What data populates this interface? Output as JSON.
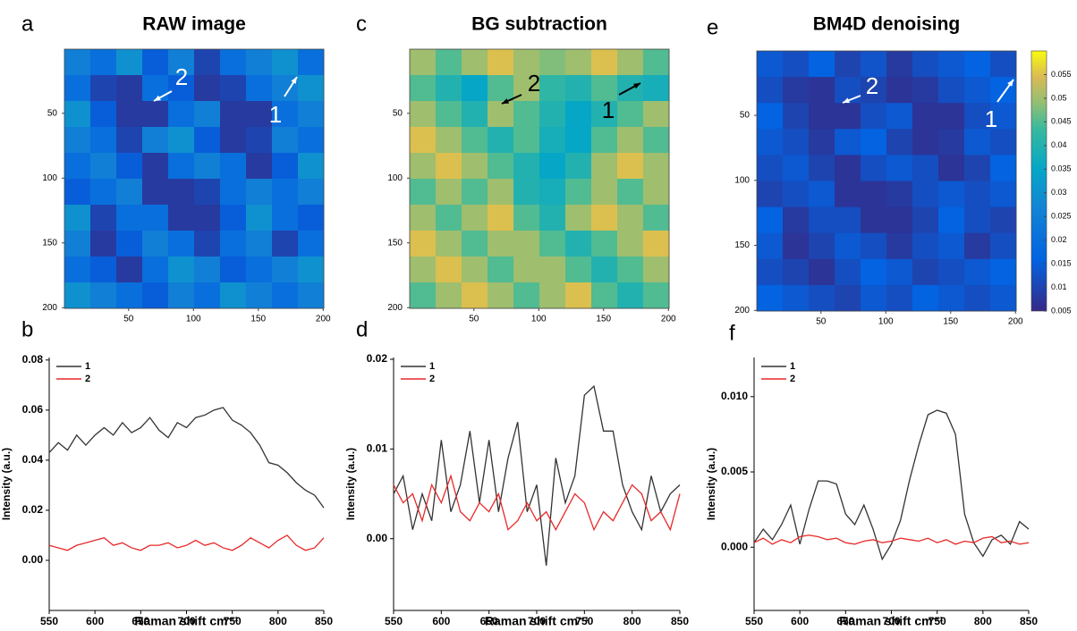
{
  "chart_data": [
    {
      "type": "heatmap",
      "panel": "a",
      "title": "RAW image",
      "annotations": [
        "2",
        "1"
      ],
      "annotation_color": "#ffffff",
      "xlim": [
        0.5,
        200.5
      ],
      "ylim": [
        0.5,
        200.5
      ],
      "xticks": [
        50,
        100,
        150,
        200
      ],
      "yticks": [
        50,
        100,
        150,
        200
      ],
      "values": [
        [
          0.025,
          0.02,
          0.03,
          0.015,
          0.025,
          0.01,
          0.02,
          0.025,
          0.03,
          0.02
        ],
        [
          0.02,
          0.01,
          0.008,
          0.02,
          0.015,
          0.008,
          0.01,
          0.02,
          0.025,
          0.03
        ],
        [
          0.03,
          0.015,
          0.008,
          0.008,
          0.02,
          0.025,
          0.008,
          0.008,
          0.02,
          0.025
        ],
        [
          0.025,
          0.02,
          0.01,
          0.025,
          0.03,
          0.015,
          0.008,
          0.01,
          0.025,
          0.02
        ],
        [
          0.02,
          0.025,
          0.015,
          0.008,
          0.02,
          0.025,
          0.02,
          0.008,
          0.015,
          0.03
        ],
        [
          0.015,
          0.02,
          0.025,
          0.008,
          0.008,
          0.01,
          0.02,
          0.025,
          0.02,
          0.025
        ],
        [
          0.03,
          0.01,
          0.02,
          0.02,
          0.008,
          0.008,
          0.015,
          0.03,
          0.02,
          0.015
        ],
        [
          0.025,
          0.008,
          0.015,
          0.025,
          0.02,
          0.01,
          0.02,
          0.025,
          0.01,
          0.02
        ],
        [
          0.02,
          0.015,
          0.008,
          0.02,
          0.03,
          0.025,
          0.015,
          0.02,
          0.025,
          0.03
        ],
        [
          0.03,
          0.025,
          0.02,
          0.015,
          0.025,
          0.02,
          0.03,
          0.025,
          0.02,
          0.025
        ]
      ]
    },
    {
      "type": "heatmap",
      "panel": "c",
      "title": "BG subtraction",
      "annotations": [
        "2",
        "1"
      ],
      "annotation_color": "#000000",
      "xlim": [
        0.5,
        200.5
      ],
      "ylim": [
        0.5,
        200.5
      ],
      "xticks": [
        50,
        100,
        150,
        200
      ],
      "yticks": [
        50,
        100,
        150,
        200
      ],
      "values": [
        [
          0.05,
          0.045,
          0.05,
          0.055,
          0.05,
          0.048,
          0.05,
          0.055,
          0.05,
          0.045
        ],
        [
          0.045,
          0.04,
          0.035,
          0.045,
          0.05,
          0.042,
          0.04,
          0.045,
          0.04,
          0.038
        ],
        [
          0.05,
          0.045,
          0.04,
          0.05,
          0.045,
          0.04,
          0.035,
          0.04,
          0.045,
          0.05
        ],
        [
          0.055,
          0.05,
          0.045,
          0.04,
          0.045,
          0.038,
          0.035,
          0.045,
          0.05,
          0.045
        ],
        [
          0.05,
          0.055,
          0.05,
          0.045,
          0.04,
          0.035,
          0.04,
          0.05,
          0.055,
          0.05
        ],
        [
          0.045,
          0.05,
          0.045,
          0.05,
          0.04,
          0.038,
          0.045,
          0.05,
          0.045,
          0.05
        ],
        [
          0.05,
          0.045,
          0.05,
          0.055,
          0.045,
          0.04,
          0.05,
          0.055,
          0.05,
          0.045
        ],
        [
          0.055,
          0.05,
          0.045,
          0.05,
          0.05,
          0.045,
          0.04,
          0.045,
          0.05,
          0.055
        ],
        [
          0.05,
          0.055,
          0.05,
          0.045,
          0.05,
          0.05,
          0.045,
          0.04,
          0.045,
          0.05
        ],
        [
          0.045,
          0.05,
          0.055,
          0.05,
          0.045,
          0.05,
          0.055,
          0.045,
          0.04,
          0.045
        ]
      ]
    },
    {
      "type": "heatmap",
      "panel": "e",
      "title": "BM4D denoising",
      "annotations": [
        "2",
        "1"
      ],
      "annotation_color": "#ffffff",
      "xlim": [
        0.5,
        200.5
      ],
      "ylim": [
        0.5,
        200.5
      ],
      "xticks": [
        50,
        100,
        150,
        200
      ],
      "yticks": [
        50,
        100,
        150,
        200
      ],
      "clim": [
        0.005,
        0.06
      ],
      "cticks": [
        0.005,
        0.01,
        0.015,
        0.02,
        0.025,
        0.03,
        0.035,
        0.04,
        0.045,
        0.05,
        0.055
      ],
      "values": [
        [
          0.014,
          0.012,
          0.016,
          0.01,
          0.013,
          0.008,
          0.012,
          0.014,
          0.016,
          0.012
        ],
        [
          0.012,
          0.008,
          0.007,
          0.012,
          0.01,
          0.007,
          0.008,
          0.012,
          0.014,
          0.016
        ],
        [
          0.016,
          0.01,
          0.007,
          0.007,
          0.012,
          0.014,
          0.007,
          0.007,
          0.012,
          0.014
        ],
        [
          0.014,
          0.012,
          0.008,
          0.014,
          0.016,
          0.01,
          0.007,
          0.008,
          0.014,
          0.012
        ],
        [
          0.012,
          0.014,
          0.01,
          0.007,
          0.012,
          0.014,
          0.012,
          0.007,
          0.01,
          0.016
        ],
        [
          0.01,
          0.012,
          0.014,
          0.007,
          0.007,
          0.008,
          0.012,
          0.014,
          0.012,
          0.014
        ],
        [
          0.016,
          0.008,
          0.012,
          0.012,
          0.007,
          0.007,
          0.01,
          0.016,
          0.012,
          0.01
        ],
        [
          0.014,
          0.007,
          0.01,
          0.014,
          0.012,
          0.008,
          0.012,
          0.014,
          0.008,
          0.012
        ],
        [
          0.012,
          0.01,
          0.007,
          0.012,
          0.016,
          0.014,
          0.01,
          0.012,
          0.014,
          0.016
        ],
        [
          0.016,
          0.014,
          0.012,
          0.01,
          0.014,
          0.012,
          0.016,
          0.014,
          0.012,
          0.014
        ]
      ]
    },
    {
      "type": "line",
      "panel": "b",
      "xlabel": "Raman shift cm⁻¹",
      "ylabel": "Intensity (a.u.)",
      "xlim": [
        550,
        850
      ],
      "ylim": [
        -0.02,
        0.081
      ],
      "xticks": [
        550,
        600,
        650,
        700,
        750,
        800,
        850
      ],
      "yticks": [
        {
          "value": 0,
          "label": "0.00"
        },
        {
          "value": 0.02,
          "label": "0.02"
        },
        {
          "value": 0.04,
          "label": "0.04"
        },
        {
          "value": 0.06,
          "label": "0.06"
        },
        {
          "value": 0.08,
          "label": "0.08"
        }
      ],
      "x": [
        550,
        560,
        570,
        580,
        590,
        600,
        610,
        620,
        630,
        640,
        650,
        660,
        670,
        680,
        690,
        700,
        710,
        720,
        730,
        740,
        750,
        760,
        770,
        780,
        790,
        800,
        810,
        820,
        830,
        840,
        850
      ],
      "series": [
        {
          "name": "1",
          "color": "#333333",
          "values": [
            0.043,
            0.047,
            0.044,
            0.05,
            0.046,
            0.05,
            0.053,
            0.05,
            0.055,
            0.051,
            0.053,
            0.057,
            0.052,
            0.049,
            0.055,
            0.053,
            0.057,
            0.058,
            0.06,
            0.061,
            0.056,
            0.054,
            0.051,
            0.046,
            0.039,
            0.038,
            0.035,
            0.031,
            0.028,
            0.026,
            0.021
          ]
        },
        {
          "name": "2",
          "color": "#e8292a",
          "values": [
            0.006,
            0.005,
            0.004,
            0.006,
            0.007,
            0.008,
            0.009,
            0.006,
            0.007,
            0.005,
            0.004,
            0.006,
            0.006,
            0.007,
            0.005,
            0.006,
            0.008,
            0.006,
            0.007,
            0.005,
            0.004,
            0.006,
            0.009,
            0.007,
            0.005,
            0.008,
            0.01,
            0.006,
            0.004,
            0.005,
            0.009
          ]
        }
      ]
    },
    {
      "type": "line",
      "panel": "d",
      "xlabel": "Raman shift cm⁻¹",
      "ylabel": "Intensity (a.u.)",
      "xlim": [
        550,
        850
      ],
      "ylim": [
        -0.008,
        0.0202
      ],
      "xticks": [
        550,
        600,
        650,
        700,
        750,
        800,
        850
      ],
      "yticks": [
        {
          "value": 0,
          "label": "0.00"
        },
        {
          "value": 0.01,
          "label": "0.01"
        },
        {
          "value": 0.02,
          "label": "0.02"
        }
      ],
      "x": [
        550,
        560,
        570,
        580,
        590,
        600,
        610,
        620,
        630,
        640,
        650,
        660,
        670,
        680,
        690,
        700,
        710,
        720,
        730,
        740,
        750,
        760,
        770,
        780,
        790,
        800,
        810,
        820,
        830,
        840,
        850
      ],
      "series": [
        {
          "name": "1",
          "color": "#333333",
          "values": [
            0.005,
            0.007,
            0.001,
            0.005,
            0.002,
            0.011,
            0.003,
            0.006,
            0.012,
            0.004,
            0.011,
            0.003,
            0.009,
            0.013,
            0.003,
            0.006,
            -0.003,
            0.009,
            0.004,
            0.007,
            0.016,
            0.017,
            0.012,
            0.012,
            0.006,
            0.003,
            0.001,
            0.007,
            0.003,
            0.005,
            0.006
          ]
        },
        {
          "name": "2",
          "color": "#e8292a",
          "values": [
            0.006,
            0.004,
            0.005,
            0.002,
            0.006,
            0.004,
            0.007,
            0.003,
            0.002,
            0.004,
            0.003,
            0.005,
            0.001,
            0.002,
            0.004,
            0.002,
            0.003,
            0.001,
            0.003,
            0.005,
            0.004,
            0.001,
            0.003,
            0.002,
            0.004,
            0.006,
            0.005,
            0.002,
            0.003,
            0.001,
            0.005
          ]
        }
      ]
    },
    {
      "type": "line",
      "panel": "f",
      "xlabel": "Raman shift cm⁻¹",
      "ylabel": "Intensity (a.u.)",
      "xlim": [
        550,
        850
      ],
      "ylim": [
        -0.0042,
        0.0126
      ],
      "xticks": [
        550,
        600,
        650,
        700,
        750,
        800,
        850
      ],
      "yticks": [
        {
          "value": 0,
          "label": "0.000"
        },
        {
          "value": 0.005,
          "label": "0.005"
        },
        {
          "value": 0.01,
          "label": "0.010"
        }
      ],
      "x": [
        550,
        560,
        570,
        580,
        590,
        600,
        610,
        620,
        630,
        640,
        650,
        660,
        670,
        680,
        690,
        700,
        710,
        720,
        730,
        740,
        750,
        760,
        770,
        780,
        790,
        800,
        810,
        820,
        830,
        840,
        850
      ],
      "series": [
        {
          "name": "1",
          "color": "#333333",
          "values": [
            0.0003,
            0.0012,
            0.0005,
            0.0015,
            0.0028,
            0.0002,
            0.0025,
            0.0044,
            0.0044,
            0.0042,
            0.0022,
            0.0015,
            0.0028,
            0.0012,
            -0.0008,
            0.0002,
            0.0018,
            0.0045,
            0.0068,
            0.0088,
            0.0091,
            0.0089,
            0.0075,
            0.0022,
            0.0003,
            -0.0006,
            0.0005,
            0.0008,
            0.0002,
            0.0017,
            0.0012
          ]
        },
        {
          "name": "2",
          "color": "#e8292a",
          "values": [
            0.0003,
            0.0006,
            0.0002,
            0.0005,
            0.0003,
            0.0007,
            0.0008,
            0.0007,
            0.0005,
            0.0006,
            0.0003,
            0.0002,
            0.0004,
            0.0005,
            0.0003,
            0.0004,
            0.0006,
            0.0005,
            0.0004,
            0.0006,
            0.0003,
            0.0005,
            0.0002,
            0.0004,
            0.0003,
            0.0006,
            0.0007,
            0.0003,
            0.0004,
            0.0002,
            0.0003
          ]
        }
      ]
    }
  ]
}
